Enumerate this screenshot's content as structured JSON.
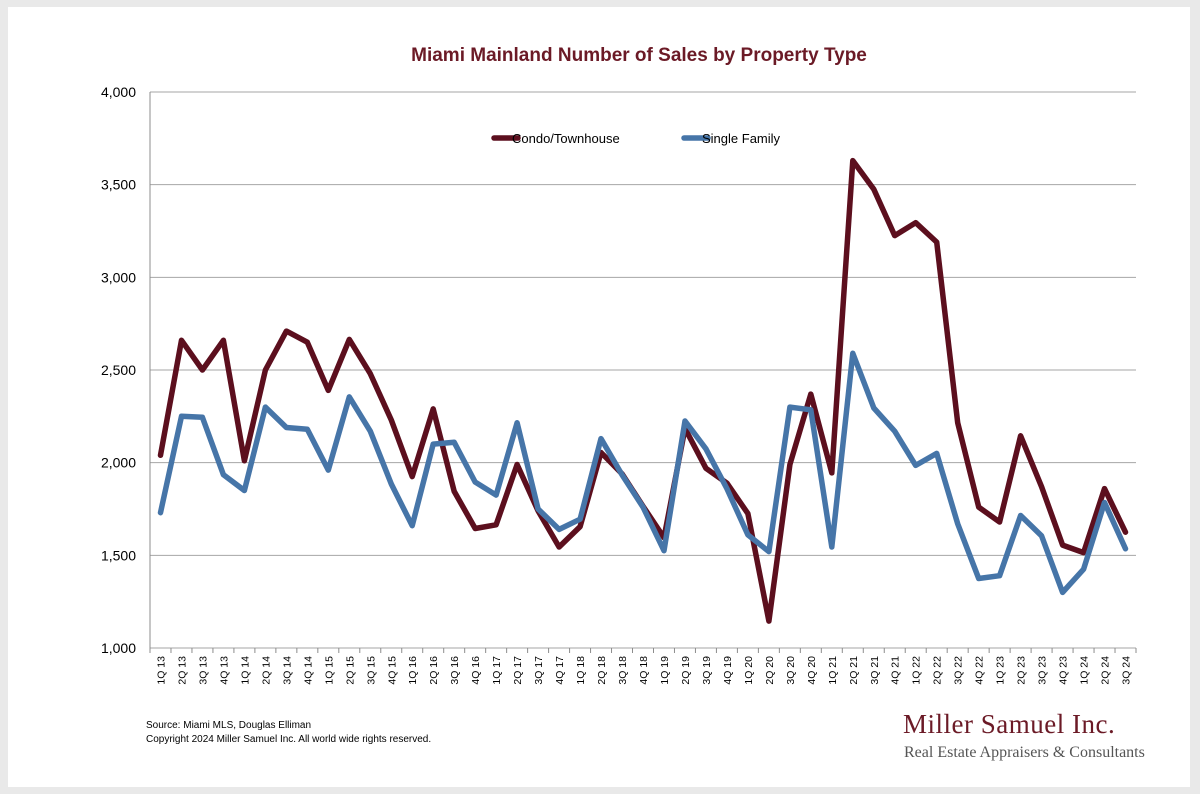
{
  "chart_data": {
    "type": "line",
    "title": "Miami Mainland Number of Sales by Property Type",
    "xlabel": "",
    "ylabel": "",
    "ylim": [
      1000,
      4000
    ],
    "yticks": [
      "1,000",
      "1,500",
      "2,000",
      "2,500",
      "3,000",
      "3,500",
      "4,000"
    ],
    "ytick_values": [
      1000,
      1500,
      2000,
      2500,
      3000,
      3500,
      4000
    ],
    "grid": true,
    "legend": "top-center",
    "categories": [
      "1Q 13",
      "2Q 13",
      "3Q 13",
      "4Q 13",
      "1Q 14",
      "2Q 14",
      "3Q 14",
      "4Q 14",
      "1Q 15",
      "2Q 15",
      "3Q 15",
      "4Q 15",
      "1Q 16",
      "2Q 16",
      "3Q 16",
      "4Q 16",
      "1Q 17",
      "2Q 17",
      "3Q 17",
      "4Q 17",
      "1Q 18",
      "2Q 18",
      "3Q 18",
      "4Q 18",
      "1Q 19",
      "2Q 19",
      "3Q 19",
      "4Q 19",
      "1Q 20",
      "2Q 20",
      "3Q 20",
      "4Q 20",
      "1Q 21",
      "2Q 21",
      "3Q 21",
      "4Q 21",
      "1Q 22",
      "2Q 22",
      "3Q 22",
      "4Q 22",
      "1Q 23",
      "2Q 23",
      "3Q 23",
      "4Q 23",
      "1Q 24",
      "2Q 24",
      "3Q 24"
    ],
    "series": [
      {
        "name": "Condo/Townhouse",
        "color": "#5c0f1e",
        "values": [
          2040,
          2660,
          2500,
          2660,
          2010,
          2500,
          2710,
          2650,
          2390,
          2665,
          2480,
          2230,
          1925,
          2290,
          1845,
          1645,
          1665,
          1990,
          1740,
          1545,
          1655,
          2055,
          1940,
          1765,
          1595,
          2185,
          1970,
          1890,
          1725,
          1145,
          1990,
          2370,
          1945,
          3630,
          3475,
          3225,
          3295,
          3190,
          2215,
          1760,
          1680,
          2145,
          1870,
          1555,
          1515,
          1860,
          1625
        ]
      },
      {
        "name": "Single Family",
        "color": "#4675a8",
        "values": [
          1730,
          2250,
          2245,
          1935,
          1850,
          2300,
          2190,
          2180,
          1960,
          2355,
          2170,
          1885,
          1660,
          2100,
          2110,
          1895,
          1825,
          2215,
          1750,
          1640,
          1695,
          2130,
          1935,
          1760,
          1525,
          2225,
          2075,
          1860,
          1610,
          1520,
          2300,
          2285,
          1545,
          2590,
          2295,
          2170,
          1985,
          2050,
          1670,
          1375,
          1390,
          1715,
          1605,
          1300,
          1425,
          1785,
          1535
        ]
      }
    ]
  },
  "footer": {
    "source_line": "Source: Miami MLS, Douglas Elliman",
    "copyright_line": "Copyright 2024 Miller Samuel Inc.  All world wide rights reserved."
  },
  "brand": {
    "name": "Miller Samuel Inc.",
    "tagline": "Real Estate Appraisers & Consultants",
    "color": "#6b1a26"
  }
}
